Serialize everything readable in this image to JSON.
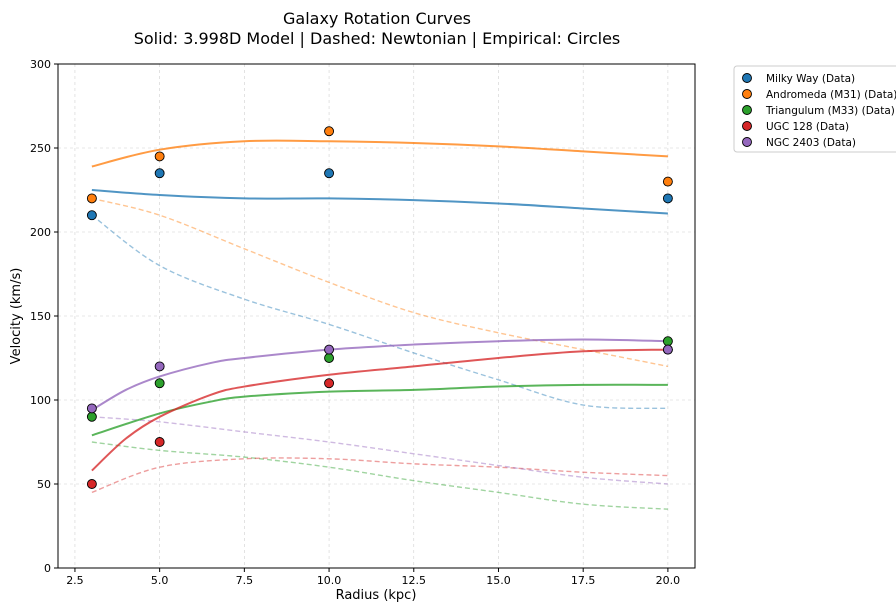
{
  "chart_data": {
    "type": "line",
    "title_line1": "Galaxy Rotation Curves",
    "title_line2": "Solid: 3.998D Model | Dashed: Newtonian | Empirical: Circles",
    "xlabel": "Radius (kpc)",
    "ylabel": "Velocity (km/s)",
    "xlim": [
      2.0,
      20.8
    ],
    "ylim": [
      0,
      300
    ],
    "xticks": [
      2.5,
      5.0,
      7.5,
      10.0,
      12.5,
      15.0,
      17.5,
      20.0
    ],
    "xtick_labels": [
      "2.5",
      "5.0",
      "7.5",
      "10.0",
      "12.5",
      "15.0",
      "17.5",
      "20.0"
    ],
    "yticks": [
      0,
      50,
      100,
      150,
      200,
      250,
      300
    ],
    "ytick_labels": [
      "0",
      "50",
      "100",
      "150",
      "200",
      "250",
      "300"
    ],
    "grid": true,
    "legend_position": "outside-right",
    "series": [
      {
        "name": "Milky Way (Data)",
        "color": "#1f77b4",
        "data_points": [
          [
            3,
            210
          ],
          [
            5,
            235
          ],
          [
            10,
            235
          ],
          [
            20,
            220
          ]
        ],
        "model_curve": [
          [
            3,
            225
          ],
          [
            5,
            222
          ],
          [
            7.5,
            220
          ],
          [
            10,
            220
          ],
          [
            12.5,
            219
          ],
          [
            15,
            217
          ],
          [
            17.5,
            214
          ],
          [
            20,
            211
          ]
        ],
        "newtonian_curve": [
          [
            3,
            210
          ],
          [
            5,
            180
          ],
          [
            7.5,
            160
          ],
          [
            10,
            145
          ],
          [
            12.5,
            128
          ],
          [
            15,
            112
          ],
          [
            17.5,
            97
          ],
          [
            20,
            95
          ]
        ]
      },
      {
        "name": "Andromeda (M31) (Data)",
        "color": "#ff7f0e",
        "data_points": [
          [
            3,
            220
          ],
          [
            5,
            245
          ],
          [
            10,
            260
          ],
          [
            20,
            230
          ]
        ],
        "model_curve": [
          [
            3,
            239
          ],
          [
            5,
            249
          ],
          [
            7.5,
            254
          ],
          [
            10,
            254
          ],
          [
            12.5,
            253
          ],
          [
            15,
            251
          ],
          [
            17.5,
            248
          ],
          [
            20,
            245
          ]
        ],
        "newtonian_curve": [
          [
            3,
            220
          ],
          [
            5,
            210
          ],
          [
            7.5,
            190
          ],
          [
            10,
            170
          ],
          [
            12.5,
            152
          ],
          [
            15,
            140
          ],
          [
            17.5,
            130
          ],
          [
            20,
            120
          ]
        ]
      },
      {
        "name": "Triangulum (M33) (Data)",
        "color": "#2ca02c",
        "data_points": [
          [
            3,
            90
          ],
          [
            5,
            110
          ],
          [
            10,
            125
          ],
          [
            20,
            135
          ]
        ],
        "model_curve": [
          [
            3,
            79
          ],
          [
            5,
            92
          ],
          [
            6.5,
            99
          ],
          [
            7.5,
            102
          ],
          [
            10,
            105
          ],
          [
            12.5,
            106
          ],
          [
            15,
            108
          ],
          [
            17.5,
            109
          ],
          [
            20,
            109
          ]
        ],
        "newtonian_curve": [
          [
            3,
            75
          ],
          [
            5,
            70
          ],
          [
            7.5,
            66
          ],
          [
            10,
            60
          ],
          [
            12.5,
            52
          ],
          [
            15,
            45
          ],
          [
            17.5,
            38
          ],
          [
            20,
            35
          ]
        ]
      },
      {
        "name": "UGC 128 (Data)",
        "color": "#d62728",
        "data_points": [
          [
            3,
            50
          ],
          [
            5,
            75
          ],
          [
            10,
            110
          ],
          [
            20,
            130
          ]
        ],
        "model_curve": [
          [
            3,
            58
          ],
          [
            4,
            77
          ],
          [
            5,
            90
          ],
          [
            6.5,
            103
          ],
          [
            7.5,
            108
          ],
          [
            10,
            115
          ],
          [
            12.5,
            120
          ],
          [
            15,
            125
          ],
          [
            17.5,
            129
          ],
          [
            20,
            130
          ]
        ],
        "newtonian_curve": [
          [
            3,
            45
          ],
          [
            5,
            60
          ],
          [
            7.5,
            65
          ],
          [
            10,
            65
          ],
          [
            12.5,
            62
          ],
          [
            15,
            60
          ],
          [
            17.5,
            57
          ],
          [
            20,
            55
          ]
        ]
      },
      {
        "name": "NGC 2403 (Data)",
        "color": "#9467bd",
        "data_points": [
          [
            3,
            95
          ],
          [
            5,
            120
          ],
          [
            10,
            130
          ],
          [
            20,
            130
          ]
        ],
        "model_curve": [
          [
            3,
            94
          ],
          [
            4,
            106
          ],
          [
            5,
            114
          ],
          [
            6.5,
            122
          ],
          [
            7.5,
            125
          ],
          [
            10,
            130
          ],
          [
            12.5,
            133
          ],
          [
            15,
            135
          ],
          [
            17.5,
            136
          ],
          [
            20,
            135
          ]
        ],
        "newtonian_curve": [
          [
            3,
            90
          ],
          [
            5,
            87
          ],
          [
            7.5,
            81
          ],
          [
            10,
            75
          ],
          [
            12.5,
            68
          ],
          [
            15,
            61
          ],
          [
            17.5,
            54
          ],
          [
            20,
            50
          ]
        ]
      }
    ]
  }
}
